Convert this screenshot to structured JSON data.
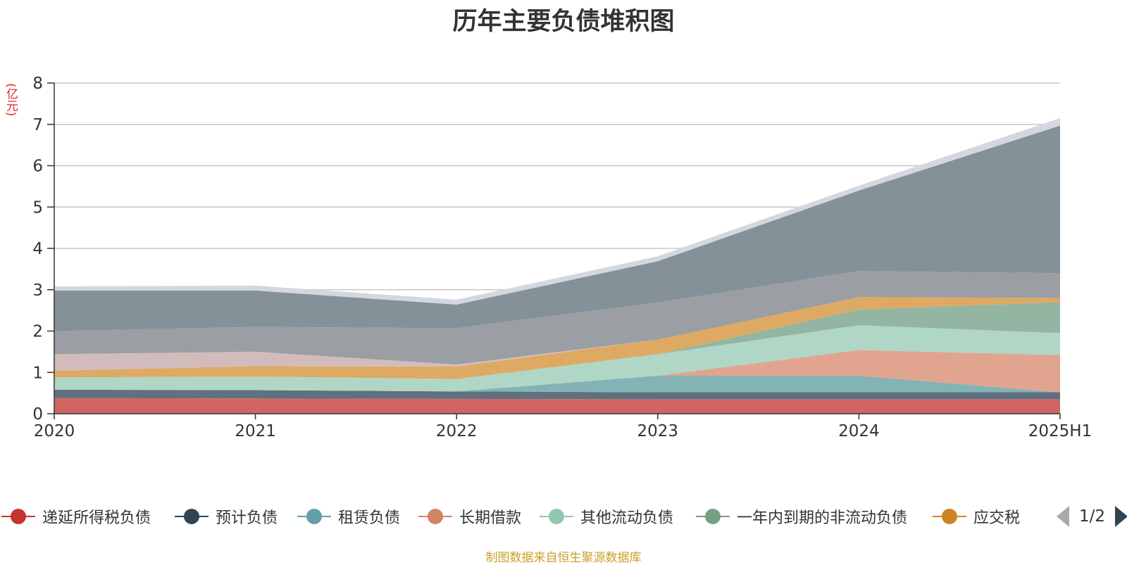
{
  "chart_data": {
    "type": "area",
    "stacked": true,
    "title": "历年主要负债堆积图",
    "unit": "(亿元)",
    "categories": [
      "2020",
      "2021",
      "2022",
      "2023",
      "2024",
      "2025H1"
    ],
    "ylim": [
      0,
      8
    ],
    "yticks": [
      0,
      1,
      2,
      3,
      4,
      5,
      6,
      7,
      8
    ],
    "grid": true,
    "series": [
      {
        "name": "递延所得税负债",
        "color": "#d06664",
        "values": [
          0.38,
          0.37,
          0.36,
          0.35,
          0.35,
          0.35
        ]
      },
      {
        "name": "预计负债",
        "color": "#60707f",
        "values": [
          0.2,
          0.2,
          0.18,
          0.17,
          0.17,
          0.17
        ]
      },
      {
        "name": "租赁负债",
        "color": "#83b3b5",
        "values": [
          0.0,
          0.0,
          0.0,
          0.4,
          0.4,
          0.0
        ]
      },
      {
        "name": "长期借款",
        "color": "#e1a48f",
        "values": [
          0.0,
          0.0,
          0.0,
          0.0,
          0.62,
          0.9
        ]
      },
      {
        "name": "其他流动负债",
        "color": "#b0d6c6",
        "values": [
          0.3,
          0.33,
          0.3,
          0.52,
          0.6,
          0.53
        ]
      },
      {
        "name": "一年内到期的非流动负债",
        "color": "#94b5a2",
        "values": [
          0.0,
          0.0,
          0.0,
          0.0,
          0.38,
          0.75
        ]
      },
      {
        "name": "应交税",
        "color": "#dda963",
        "values": [
          0.16,
          0.25,
          0.3,
          0.35,
          0.3,
          0.1
        ]
      },
      {
        "name": "",
        "color": "#d2bcbb",
        "values": [
          0.4,
          0.35,
          0.05,
          0.0,
          0.0,
          0.0
        ]
      },
      {
        "name": "",
        "color": "#9b9ea3",
        "values": [
          0.56,
          0.6,
          0.88,
          0.9,
          0.63,
          0.6
        ]
      },
      {
        "name": "",
        "color": "#859198",
        "values": [
          0.98,
          0.88,
          0.57,
          1.0,
          1.95,
          3.57
        ]
      },
      {
        "name": "",
        "color": "#d3d8de",
        "values": [
          0.1,
          0.12,
          0.12,
          0.12,
          0.12,
          0.18
        ]
      }
    ]
  },
  "legend": {
    "items": [
      {
        "label": "递延所得税负债",
        "color": "#c23531"
      },
      {
        "label": "预计负债",
        "color": "#2f4554"
      },
      {
        "label": "租赁负债",
        "color": "#61a0a8"
      },
      {
        "label": "长期借款",
        "color": "#d48265"
      },
      {
        "label": "其他流动负债",
        "color": "#91c7ae"
      },
      {
        "label": "一年内到期的非流动负债",
        "color": "#749f83"
      },
      {
        "label": "应交税",
        "color": "#ca8622"
      }
    ],
    "page_text": "1/2"
  },
  "source_note": "制图数据来自恒生聚源数据库"
}
